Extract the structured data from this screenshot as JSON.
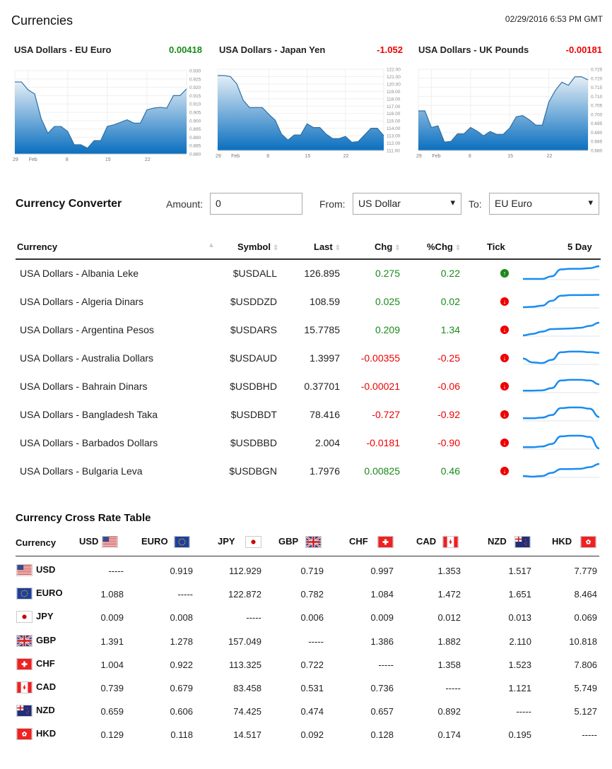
{
  "header": {
    "title": "Currencies",
    "datetime": "02/29/2016 6:53 PM GMT"
  },
  "charts": [
    {
      "title": "USA Dollars - EU Euro",
      "change": "0.00418",
      "change_color": "#1a8a1a",
      "type": "area",
      "x_ticks": [
        {
          "i": 0,
          "label": "29"
        },
        {
          "i": 2,
          "label": "Feb"
        },
        {
          "i": 8,
          "label": "8"
        },
        {
          "i": 14,
          "label": "15"
        },
        {
          "i": 20,
          "label": "22"
        }
      ],
      "ylim": [
        0.88,
        0.93
      ],
      "y_ticks": [
        "0.930",
        "0.925",
        "0.920",
        "0.915",
        "0.910",
        "0.905",
        "0.900",
        "0.895",
        "0.890",
        "0.885",
        "0.880"
      ],
      "values": [
        0.9232,
        0.9232,
        0.9185,
        0.916,
        0.901,
        0.8925,
        0.8965,
        0.8965,
        0.8935,
        0.8855,
        0.8855,
        0.8835,
        0.888,
        0.888,
        0.8965,
        0.8975,
        0.899,
        0.9005,
        0.8985,
        0.8985,
        0.9065,
        0.9075,
        0.908,
        0.9075,
        0.915,
        0.915,
        0.919
      ]
    },
    {
      "title": "USA Dollars - Japan Yen",
      "change": "-1.052",
      "change_color": "#e00",
      "type": "area",
      "x_ticks": [
        {
          "i": 0,
          "label": "29"
        },
        {
          "i": 2,
          "label": "Feb"
        },
        {
          "i": 8,
          "label": "8"
        },
        {
          "i": 14,
          "label": "15"
        },
        {
          "i": 20,
          "label": "22"
        }
      ],
      "ylim": [
        111,
        122
      ],
      "y_ticks": [
        "122.00",
        "121.00",
        "120.00",
        "119.00",
        "118.00",
        "117.00",
        "116.00",
        "115.00",
        "114.00",
        "113.00",
        "112.00",
        "111.00"
      ],
      "values": [
        121.14,
        121.14,
        121.0,
        120.0,
        117.8,
        116.8,
        116.8,
        116.8,
        115.9,
        115.1,
        113.2,
        112.4,
        113.1,
        113.1,
        114.6,
        114.1,
        114.1,
        113.2,
        112.6,
        112.6,
        112.9,
        112.1,
        112.2,
        113.1,
        114.0,
        114.0,
        113.0
      ]
    },
    {
      "title": "USA Dollars - UK Pounds",
      "change": "-0.00181",
      "change_color": "#e00",
      "type": "area",
      "x_ticks": [
        {
          "i": 0,
          "label": "29"
        },
        {
          "i": 2,
          "label": "Feb"
        },
        {
          "i": 8,
          "label": "8"
        },
        {
          "i": 14,
          "label": "15"
        },
        {
          "i": 20,
          "label": "22"
        }
      ],
      "ylim": [
        0.68,
        0.725
      ],
      "y_ticks": [
        "0.725",
        "0.720",
        "0.715",
        "0.710",
        "0.705",
        "0.700",
        "0.695",
        "0.690",
        "0.685",
        "0.680"
      ],
      "values": [
        0.7019,
        0.7019,
        0.6927,
        0.6936,
        0.6846,
        0.685,
        0.6892,
        0.6892,
        0.6927,
        0.6907,
        0.6881,
        0.6905,
        0.6889,
        0.6889,
        0.6924,
        0.6986,
        0.6993,
        0.697,
        0.694,
        0.694,
        0.7068,
        0.7133,
        0.7178,
        0.7161,
        0.7208,
        0.7208,
        0.7191
      ]
    }
  ],
  "converter": {
    "title": "Currency Converter",
    "amount_label": "Amount:",
    "amount_value": "0",
    "from_label": "From:",
    "from_value": "US Dollar",
    "to_label": "To:",
    "to_value": "EU Euro"
  },
  "quotes": {
    "columns": [
      "Currency",
      "Symbol",
      "Last",
      "Chg",
      "%Chg",
      "Tick",
      "5 Day"
    ],
    "rows": [
      {
        "currency": "USA Dollars - Albania Leke",
        "symbol": "$USDALL",
        "last": "126.895",
        "chg": "0.275",
        "pchg": "0.22",
        "tick": "up",
        "spark": [
          0,
          0,
          0,
          0.2,
          0.75,
          0.8,
          0.8,
          0.85,
          1
        ]
      },
      {
        "currency": "USA Dollars - Algeria Dinars",
        "symbol": "$USDDZD",
        "last": "108.59",
        "chg": "0.025",
        "pchg": "0.02",
        "tick": "down",
        "spark": [
          0,
          0.03,
          0.12,
          0.5,
          0.9,
          0.95,
          0.95,
          0.96,
          0.97
        ]
      },
      {
        "currency": "USA Dollars - Argentina Pesos",
        "symbol": "$USDARS",
        "last": "15.7785",
        "chg": "0.209",
        "pchg": "1.34",
        "tick": "down",
        "spark": [
          0,
          0.12,
          0.3,
          0.5,
          0.52,
          0.55,
          0.6,
          0.75,
          1
        ]
      },
      {
        "currency": "USA Dollars - Australia Dollars",
        "symbol": "$USDAUD",
        "last": "1.3997",
        "chg": "-0.00355",
        "pchg": "-0.25",
        "tick": "down",
        "spark": [
          0.4,
          0.1,
          0.05,
          0.3,
          0.9,
          0.95,
          0.95,
          0.9,
          0.85
        ]
      },
      {
        "currency": "USA Dollars - Bahrain Dinars",
        "symbol": "$USDBHD",
        "last": "0.37701",
        "chg": "-0.00021",
        "pchg": "-0.06",
        "tick": "down",
        "spark": [
          0.1,
          0.1,
          0.12,
          0.3,
          0.9,
          0.95,
          0.95,
          0.9,
          0.6
        ]
      },
      {
        "currency": "USA Dollars - Bangladesh Taka",
        "symbol": "$USDBDT",
        "last": "78.416",
        "chg": "-0.727",
        "pchg": "-0.92",
        "tick": "down",
        "spark": [
          0.15,
          0.15,
          0.2,
          0.4,
          0.95,
          1,
          1,
          0.9,
          0.25
        ]
      },
      {
        "currency": "USA Dollars - Barbados Dollars",
        "symbol": "$USDBBD",
        "last": "2.004",
        "chg": "-0.0181",
        "pchg": "-0.90",
        "tick": "down",
        "spark": [
          0.1,
          0.1,
          0.15,
          0.35,
          0.95,
          1,
          1,
          0.9,
          0
        ]
      },
      {
        "currency": "USA Dollars - Bulgaria Leva",
        "symbol": "$USDBGN",
        "last": "1.7976",
        "chg": "0.00825",
        "pchg": "0.46",
        "tick": "down",
        "spark": [
          0.05,
          0,
          0.05,
          0.3,
          0.6,
          0.6,
          0.62,
          0.75,
          1
        ]
      }
    ]
  },
  "cross": {
    "title": "Currency Cross Rate Table",
    "corner": "Currency",
    "currencies": [
      "USD",
      "EURO",
      "JPY",
      "GBP",
      "CHF",
      "CAD",
      "NZD",
      "HKD"
    ],
    "rows": [
      [
        "-----",
        "0.919",
        "112.929",
        "0.719",
        "0.997",
        "1.353",
        "1.517",
        "7.779"
      ],
      [
        "1.088",
        "-----",
        "122.872",
        "0.782",
        "1.084",
        "1.472",
        "1.651",
        "8.464"
      ],
      [
        "0.009",
        "0.008",
        "-----",
        "0.006",
        "0.009",
        "0.012",
        "0.013",
        "0.069"
      ],
      [
        "1.391",
        "1.278",
        "157.049",
        "-----",
        "1.386",
        "1.882",
        "2.110",
        "10.818"
      ],
      [
        "1.004",
        "0.922",
        "113.325",
        "0.722",
        "-----",
        "1.358",
        "1.523",
        "7.806"
      ],
      [
        "0.739",
        "0.679",
        "83.458",
        "0.531",
        "0.736",
        "-----",
        "1.121",
        "5.749"
      ],
      [
        "0.659",
        "0.606",
        "74.425",
        "0.474",
        "0.657",
        "0.892",
        "-----",
        "5.127"
      ],
      [
        "0.129",
        "0.118",
        "14.517",
        "0.092",
        "0.128",
        "0.174",
        "0.195",
        "-----"
      ]
    ]
  },
  "colors": {
    "positive": "#1a8a1a",
    "negative": "#e00",
    "chart_fill": "#0a6fbf",
    "sparkline": "#1a8cf0"
  }
}
